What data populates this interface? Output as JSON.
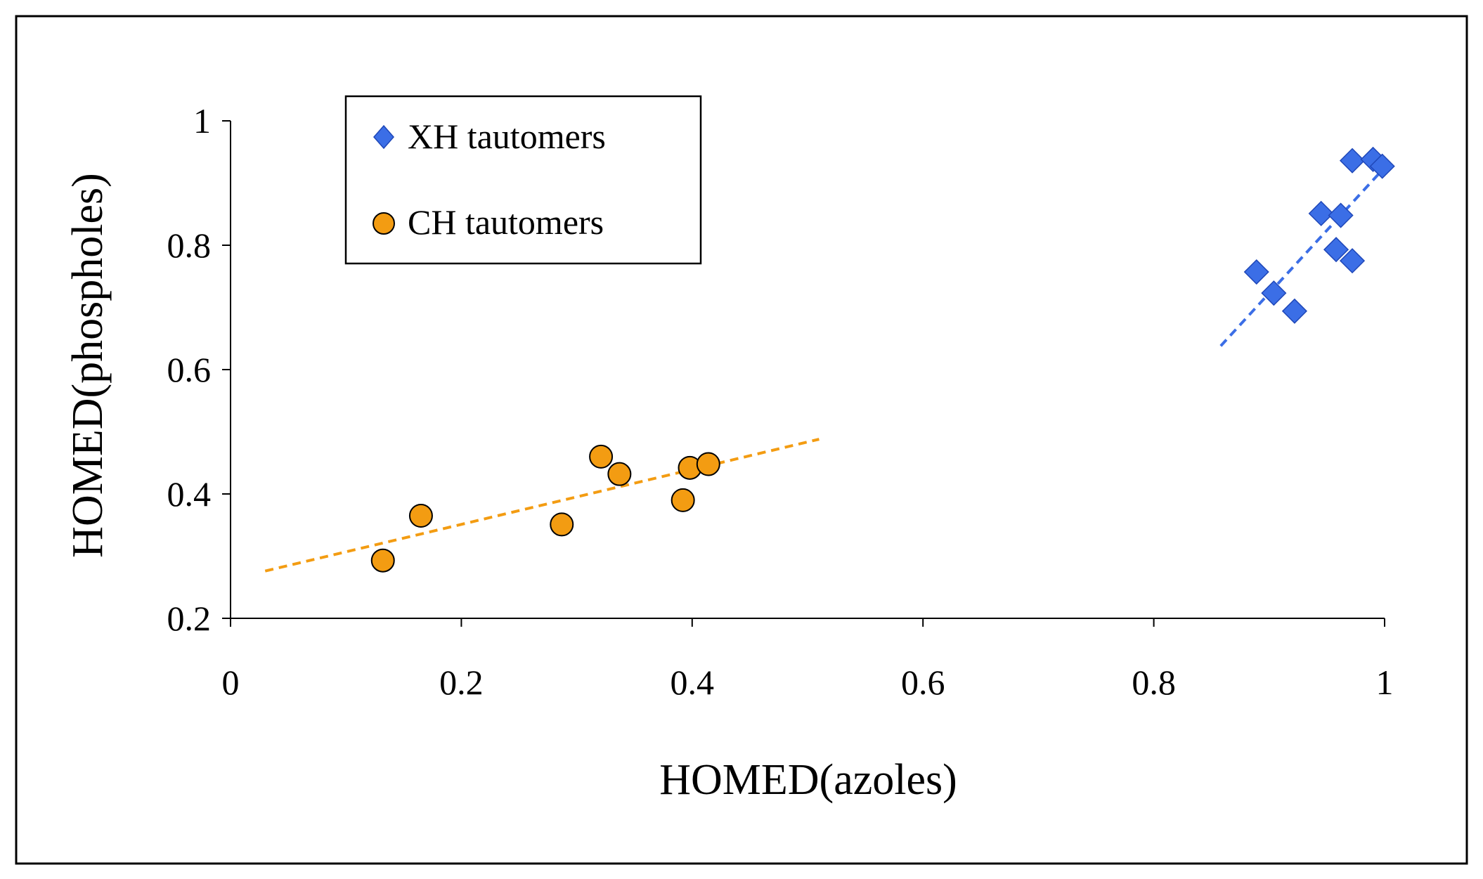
{
  "chart_data": {
    "type": "scatter",
    "title": "",
    "xlabel": "HOMED(azoles)",
    "ylabel": "HOMED(phospholes)",
    "xlim": [
      0,
      1
    ],
    "ylim": [
      0.2,
      1
    ],
    "x_ticks": [
      0,
      0.2,
      0.4,
      0.6,
      0.8,
      1
    ],
    "y_ticks": [
      0.2,
      0.4,
      0.6,
      0.8,
      1
    ],
    "x_tick_labels": [
      "0",
      "0.2",
      "0.4",
      "0.6",
      "0.8",
      "1"
    ],
    "y_tick_labels": [
      "0.2",
      "0.4",
      "0.6",
      "0.8",
      "1"
    ],
    "grid": false,
    "legend_position": "top-left",
    "series": [
      {
        "name": "XH tautomers",
        "marker": "diamond",
        "color": "#3b6ee6",
        "points": [
          {
            "x": 0.889,
            "y": 0.757
          },
          {
            "x": 0.904,
            "y": 0.723
          },
          {
            "x": 0.922,
            "y": 0.694
          },
          {
            "x": 0.945,
            "y": 0.851
          },
          {
            "x": 0.958,
            "y": 0.793
          },
          {
            "x": 0.962,
            "y": 0.848
          },
          {
            "x": 0.972,
            "y": 0.775
          },
          {
            "x": 0.972,
            "y": 0.936
          },
          {
            "x": 0.99,
            "y": 0.938
          },
          {
            "x": 0.998,
            "y": 0.927
          }
        ],
        "trendline": {
          "x": [
            0.858,
            1.0
          ],
          "y": [
            0.638,
            0.925
          ],
          "color": "#3b6ee6"
        }
      },
      {
        "name": "CH tautomers",
        "marker": "circle",
        "color": "#f39c12",
        "points": [
          {
            "x": 0.132,
            "y": 0.293
          },
          {
            "x": 0.165,
            "y": 0.365
          },
          {
            "x": 0.287,
            "y": 0.351
          },
          {
            "x": 0.321,
            "y": 0.46
          },
          {
            "x": 0.337,
            "y": 0.432
          },
          {
            "x": 0.392,
            "y": 0.39
          },
          {
            "x": 0.398,
            "y": 0.442
          },
          {
            "x": 0.414,
            "y": 0.448
          }
        ],
        "trendline": {
          "x": [
            0.03,
            0.51
          ],
          "y": [
            0.276,
            0.488
          ],
          "color": "#f39c12"
        }
      }
    ]
  }
}
